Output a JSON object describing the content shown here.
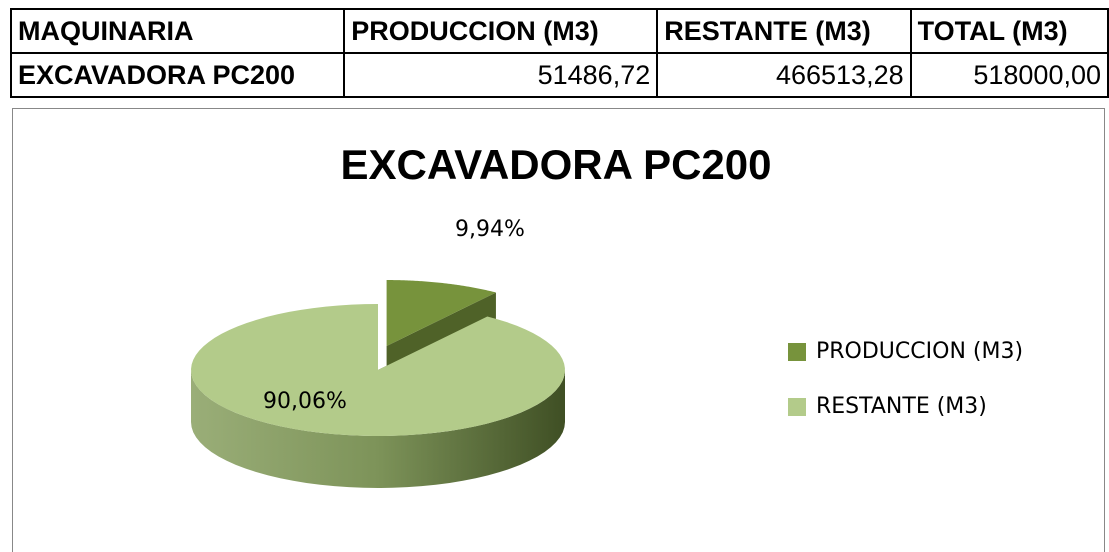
{
  "table": {
    "header": [
      "MAQUINARIA",
      "PRODUCCION (M3)",
      "RESTANTE (M3)",
      "TOTAL (M3)"
    ],
    "rows": [
      [
        "EXCAVADORA PC200",
        "51486,72",
        "466513,28",
        "518000,00"
      ]
    ]
  },
  "chart_data": {
    "type": "pie",
    "title": "EXCAVADORA PC200",
    "categories": [
      "PRODUCCION (M3)",
      "RESTANTE (M3)"
    ],
    "values": [
      9.94,
      90.06
    ],
    "value_labels": [
      "9,94%",
      "90,06%"
    ],
    "colors": [
      "#77933c",
      "#b3cb8a"
    ],
    "legend": "right"
  }
}
